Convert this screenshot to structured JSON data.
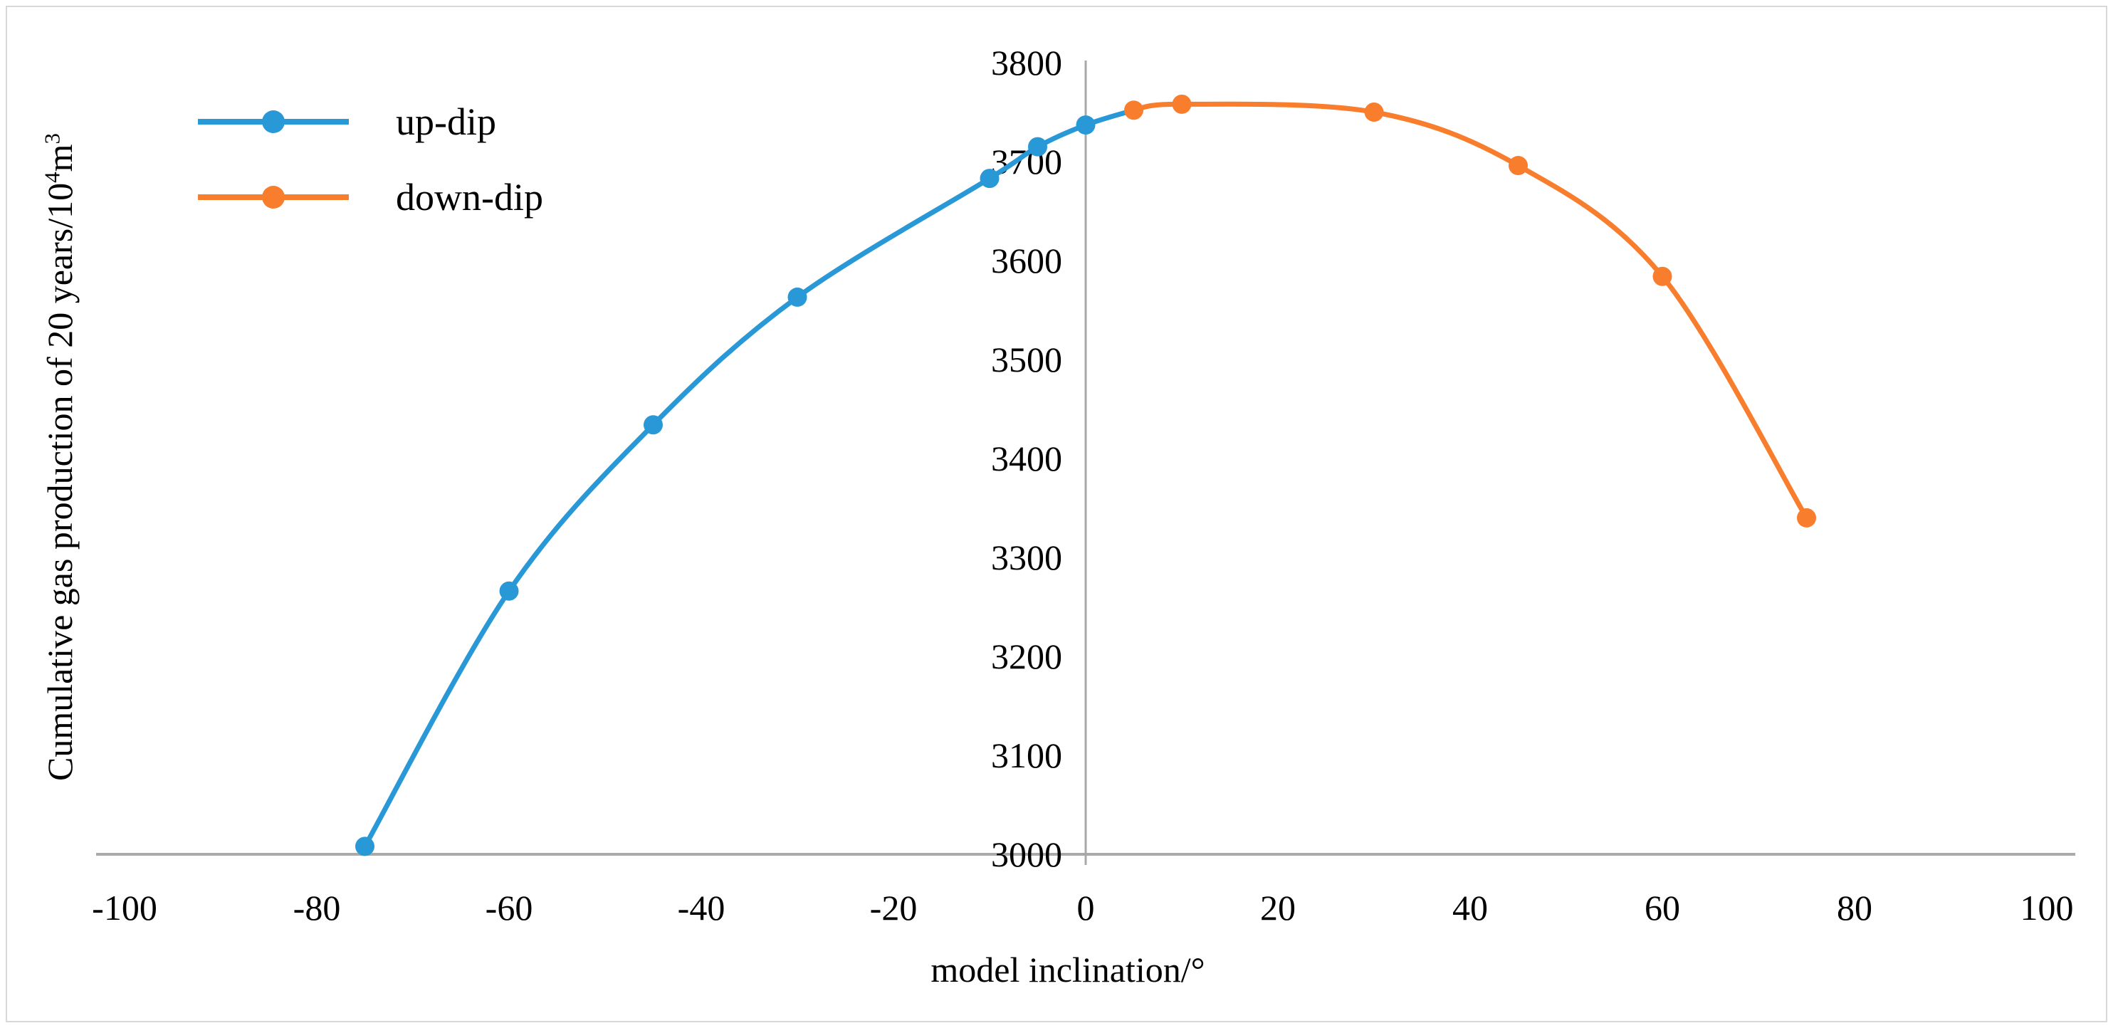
{
  "figure": {
    "background": "#ffffff",
    "border_color": "#d8d8d8",
    "text_color": "#000000"
  },
  "chart_data": {
    "type": "line",
    "title": "",
    "gridlines": false,
    "legend_position": "top-left-inside",
    "axis_color": "#a9a9a9",
    "x_axis": {
      "title": "model inclination/°",
      "min": -100,
      "max": 100,
      "tick_step": 20,
      "ticks": [
        -100,
        -80,
        -60,
        -40,
        -20,
        0,
        20,
        40,
        60,
        80,
        100
      ],
      "tick_labels": [
        "-100",
        "-80",
        "-60",
        "-40",
        "-20",
        "0",
        "20",
        "40",
        "60",
        "80",
        "100"
      ]
    },
    "y_axis": {
      "title": "Cumulative gas production of 20 years/10⁴m³",
      "title_parts": [
        {
          "text": "Cumulative gas production of 20 years/10"
        },
        {
          "text": "4",
          "sup": true
        },
        {
          "text": "m"
        },
        {
          "text": "3",
          "sup": true
        }
      ],
      "min": 3000,
      "max": 3800,
      "tick_step": 100,
      "ticks": [
        3000,
        3100,
        3200,
        3300,
        3400,
        3500,
        3600,
        3700,
        3800
      ],
      "tick_labels": [
        "3000",
        "3100",
        "3200",
        "3300",
        "3400",
        "3500",
        "3600",
        "3700",
        "3800"
      ]
    },
    "series": [
      {
        "name": "up-dip",
        "color": "#2998d6",
        "x": [
          -75,
          -60,
          -45,
          -30,
          -10,
          -5,
          0
        ],
        "y": [
          3008,
          3266,
          3434,
          3563,
          3683,
          3715,
          3737
        ],
        "joins_next_series": true
      },
      {
        "name": "down-dip",
        "color": "#f87d2c",
        "x": [
          5,
          10,
          30,
          45,
          60,
          75
        ],
        "y": [
          3752,
          3758,
          3750,
          3696,
          3584,
          3340
        ]
      }
    ]
  }
}
